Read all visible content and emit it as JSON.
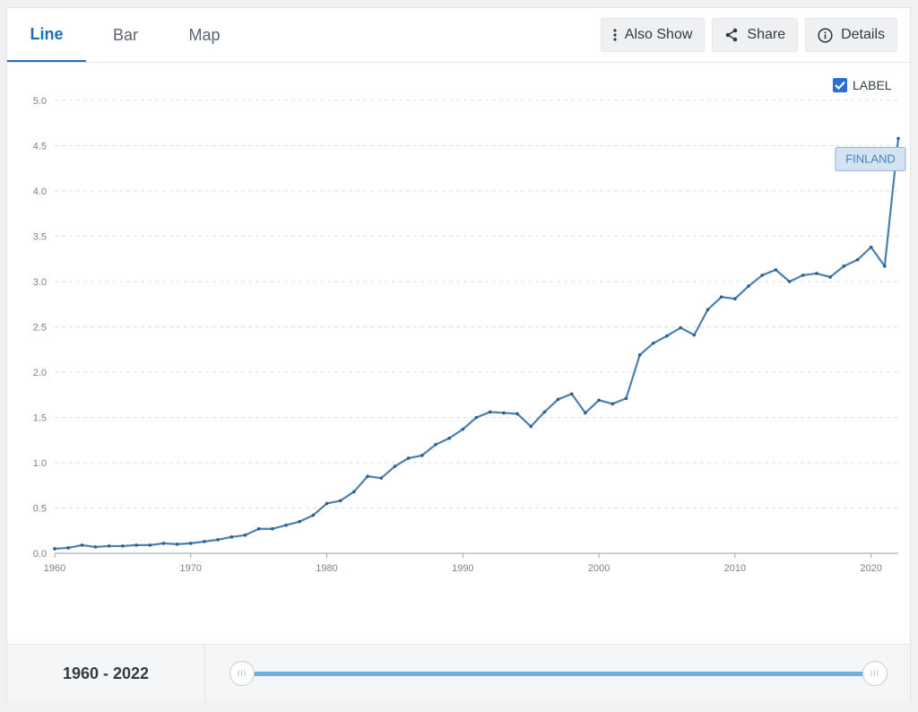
{
  "tabs": [
    {
      "label": "Line",
      "active": true
    },
    {
      "label": "Bar",
      "active": false
    },
    {
      "label": "Map",
      "active": false
    }
  ],
  "actions": {
    "also_show": {
      "label": "Also Show",
      "icon": "vertical-dots-icon"
    },
    "share": {
      "label": "Share",
      "icon": "share-icon"
    },
    "details": {
      "label": "Details",
      "icon": "info-icon"
    }
  },
  "label_toggle": {
    "label": "LABEL",
    "checked": true
  },
  "colors": {
    "line": "#4a7fb0",
    "accent": "#2a6fd8",
    "tooltip_bg": "#d3e3f3",
    "slider": "#6fb0de"
  },
  "chart_data": {
    "type": "line",
    "title": "",
    "xlabel": "",
    "ylabel": "",
    "xlim": [
      1960,
      2022
    ],
    "ylim": [
      0,
      5
    ],
    "x_ticks": [
      "1960",
      "1970",
      "1980",
      "1990",
      "2000",
      "2010",
      "2020"
    ],
    "y_ticks": [
      "0.0",
      "0.5",
      "1.0",
      "1.5",
      "2.0",
      "2.5",
      "3.0",
      "3.5",
      "4.0",
      "4.5",
      "5.0"
    ],
    "grid": true,
    "series": [
      {
        "name": "FINLAND",
        "x": [
          1960,
          1961,
          1962,
          1963,
          1964,
          1965,
          1966,
          1967,
          1968,
          1969,
          1970,
          1971,
          1972,
          1973,
          1974,
          1975,
          1976,
          1977,
          1978,
          1979,
          1980,
          1981,
          1982,
          1983,
          1984,
          1985,
          1986,
          1987,
          1988,
          1989,
          1990,
          1991,
          1992,
          1993,
          1994,
          1995,
          1996,
          1997,
          1998,
          1999,
          2000,
          2001,
          2002,
          2003,
          2004,
          2005,
          2006,
          2007,
          2008,
          2009,
          2010,
          2011,
          2012,
          2013,
          2014,
          2015,
          2016,
          2017,
          2018,
          2019,
          2020,
          2021,
          2022
        ],
        "values": [
          0.05,
          0.06,
          0.09,
          0.07,
          0.08,
          0.08,
          0.09,
          0.09,
          0.11,
          0.1,
          0.11,
          0.13,
          0.15,
          0.18,
          0.2,
          0.27,
          0.27,
          0.31,
          0.35,
          0.42,
          0.55,
          0.58,
          0.68,
          0.85,
          0.83,
          0.96,
          1.05,
          1.08,
          1.2,
          1.27,
          1.37,
          1.5,
          1.56,
          1.55,
          1.54,
          1.4,
          1.56,
          1.7,
          1.76,
          1.55,
          1.69,
          1.65,
          1.71,
          2.19,
          2.32,
          2.4,
          2.49,
          2.41,
          2.69,
          2.83,
          2.81,
          2.95,
          3.07,
          3.13,
          3.0,
          3.07,
          3.09,
          3.05,
          3.17,
          3.24,
          3.38,
          3.17,
          4.58
        ]
      }
    ]
  },
  "footer": {
    "range_label": "1960 - 2022",
    "handle_grip": "III"
  }
}
